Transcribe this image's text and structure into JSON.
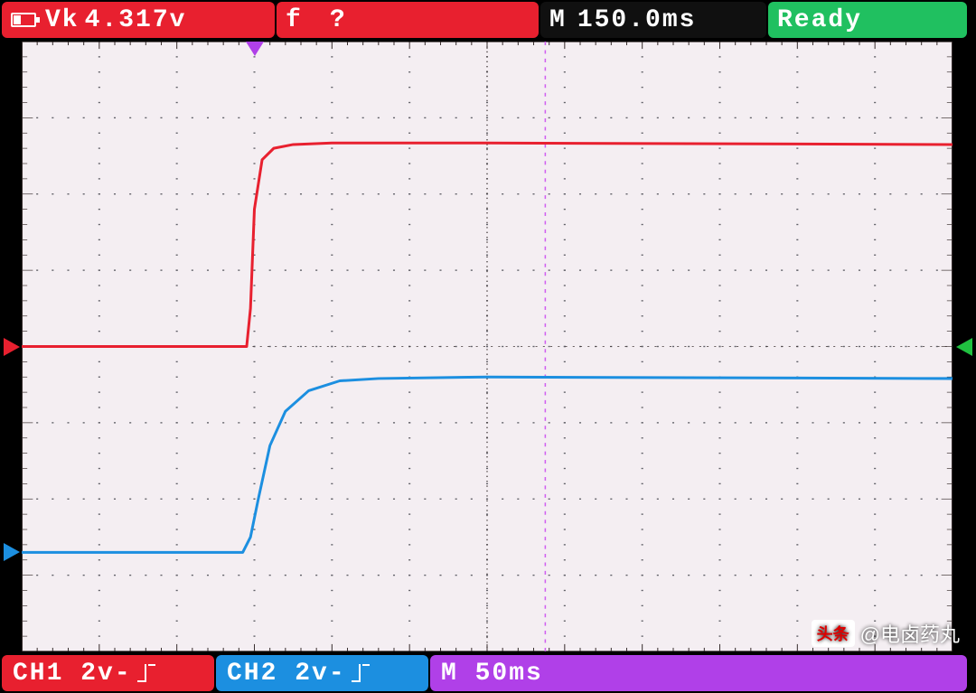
{
  "colors": {
    "ch1": "#e8202f",
    "ch2": "#1c8fe0",
    "timebase_bg": "#b040e8",
    "ready_bg": "#20c060",
    "black_bg": "#101010",
    "grid_bg": "#f4eef2",
    "grid_line": "#8a8894",
    "grid_dot": "#606068",
    "grid_center": "#3a3030",
    "cursor_dash": "#d060f0",
    "trig_marker": "#20c040",
    "time_marker": "#b040e8",
    "text_white": "#ffffff"
  },
  "top": {
    "vk": {
      "label": "Vk",
      "value": "4.317v"
    },
    "freq": {
      "label": "f",
      "value": "?"
    },
    "mpos": {
      "label": "M",
      "value": "150.0ms"
    },
    "status": "Ready"
  },
  "bottom": {
    "ch1": "CH1 2v-",
    "ch2": "CH2 2v-",
    "timebase": "M 50ms"
  },
  "layout": {
    "top_widths": {
      "vk": 302,
      "freq": 290,
      "mpos": 250,
      "status": 220
    },
    "bottom_widths": {
      "ch1": 235,
      "ch2": 235,
      "timebase": 594
    },
    "grid": {
      "cols": 12,
      "rows": 8,
      "minor": 5
    }
  },
  "markers": {
    "ch1_zero_row": 4.0,
    "ch2_zero_row": 6.7,
    "trig_level_row": 4.0,
    "trig_pos_col": 3.0,
    "cursor_col": 6.75
  },
  "traces": {
    "ch1": {
      "color_key": "ch1",
      "stroke_width": 3,
      "points": [
        [
          0.0,
          4.0
        ],
        [
          2.9,
          4.0
        ],
        [
          2.95,
          3.5
        ],
        [
          3.0,
          2.2
        ],
        [
          3.1,
          1.55
        ],
        [
          3.25,
          1.4
        ],
        [
          3.5,
          1.35
        ],
        [
          4.0,
          1.33
        ],
        [
          6.0,
          1.33
        ],
        [
          12.0,
          1.35
        ]
      ]
    },
    "ch2": {
      "color_key": "ch2",
      "stroke_width": 3,
      "points": [
        [
          0.0,
          6.7
        ],
        [
          2.85,
          6.7
        ],
        [
          2.95,
          6.5
        ],
        [
          3.05,
          6.0
        ],
        [
          3.2,
          5.3
        ],
        [
          3.4,
          4.85
        ],
        [
          3.7,
          4.58
        ],
        [
          4.1,
          4.45
        ],
        [
          4.6,
          4.42
        ],
        [
          6.0,
          4.4
        ],
        [
          12.0,
          4.42
        ]
      ]
    }
  },
  "watermark": {
    "badge": "头条",
    "text": "@电卤药丸"
  }
}
